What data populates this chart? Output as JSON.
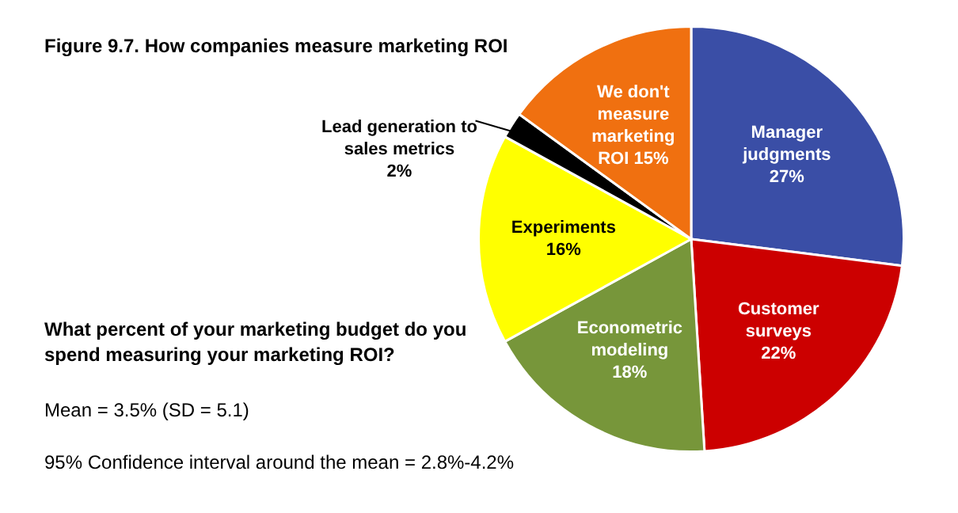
{
  "chart_data": {
    "type": "pie",
    "title": "Figure 9.7.  How companies measure marketing ROI",
    "categories": [
      "Manager judgments",
      "Customer surveys",
      "Econometric modeling",
      "Experiments",
      "Lead generation to sales metrics",
      "We don't measure marketing ROI"
    ],
    "values": [
      27,
      22,
      18,
      16,
      2,
      15
    ],
    "colors": [
      "#3a4ea6",
      "#cc0000",
      "#77963a",
      "#ffff00",
      "#000000",
      "#f07010"
    ],
    "value_labels": [
      "27%",
      "22%",
      "18%",
      "16%",
      "2%",
      "15%"
    ],
    "annotations": [
      "What percent of your marketing budget do you spend measuring your marketing ROI?",
      "Mean = 3.5% (SD = 5.1)",
      "95% Confidence interval around the mean = 2.8%-4.2%"
    ]
  }
}
